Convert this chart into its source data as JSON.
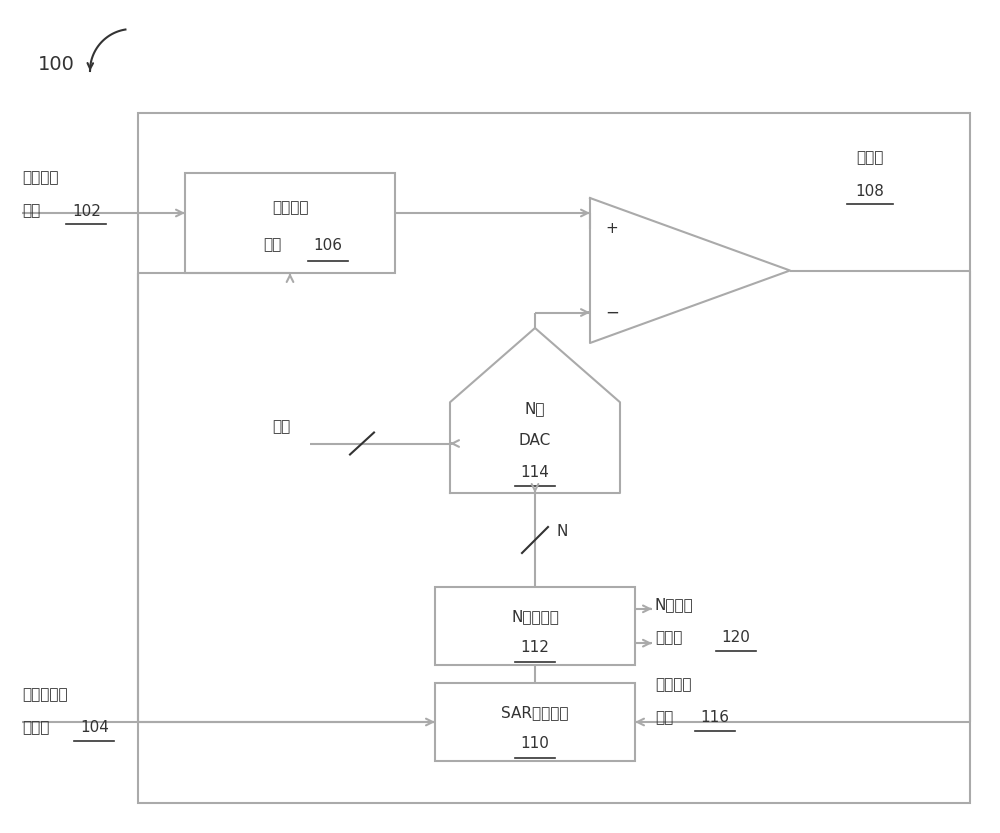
{
  "bg_color": "#ffffff",
  "line_color": "#aaaaaa",
  "text_color": "#333333",
  "fig_width": 10.0,
  "fig_height": 8.33,
  "dpi": 100,
  "label_100": "100",
  "label_analog_in_1": "模拟输入",
  "label_analog_in_2": "信号",
  "label_analog_in_num": "102",
  "label_thc_1": "跟踪保持",
  "label_thc_2": "电路",
  "label_thc_num": "106",
  "label_comp_1": "比较器",
  "label_comp_num": "108",
  "label_dac_1": "N位",
  "label_dac_2": "DAC",
  "label_dac_num": "114",
  "label_reg_1": "N位寄存器",
  "label_reg_num": "112",
  "label_sar_1": "SAR逻辑电路",
  "label_sar_num": "110",
  "label_ref": "参考",
  "label_clk_1": "外部采样时",
  "label_clk_2": "钟信号",
  "label_clk_num": "104",
  "label_nbits_1": "N比特数",
  "label_nbits_2": "字信号",
  "label_nbits_num": "120",
  "label_async_1": "异步时钟",
  "label_async_2": "信号",
  "label_async_num": "116",
  "label_N": "N",
  "label_plus": "+",
  "label_minus": "−"
}
